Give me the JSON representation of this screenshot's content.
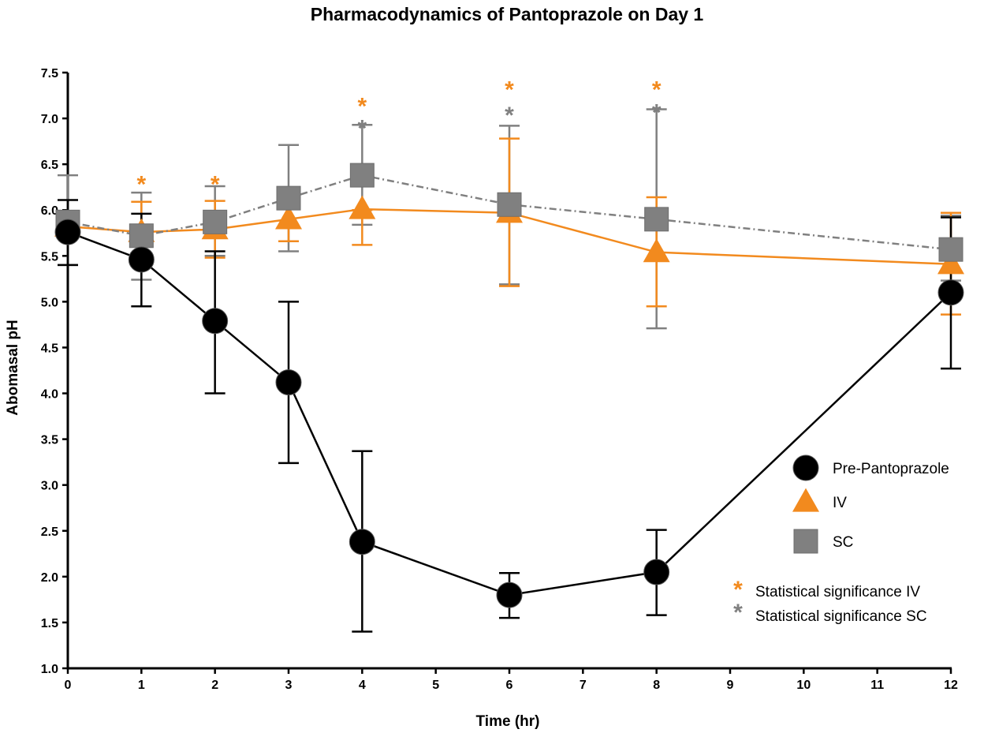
{
  "chart_data": {
    "type": "line",
    "title": "Pharmacodynamics of Pantoprazole on Day 1",
    "xlabel": "Time (hr)",
    "ylabel": "Abomasal pH",
    "xlim": [
      0,
      12
    ],
    "ylim": [
      1.0,
      7.5
    ],
    "x_ticks": [
      "0",
      "1",
      "2",
      "3",
      "4",
      "5",
      "6",
      "7",
      "8",
      "9",
      "10",
      "11",
      "12"
    ],
    "y_ticks": [
      "1.0",
      "1.5",
      "2.0",
      "2.5",
      "3.0",
      "3.5",
      "4.0",
      "4.5",
      "5.0",
      "5.5",
      "6.0",
      "6.5",
      "7.0",
      "7.5"
    ],
    "grid": false,
    "legend_position": "right",
    "series": [
      {
        "name": "Pre-Pantoprazole",
        "marker": "circle",
        "color": "#000000",
        "line": "solid",
        "x": [
          0,
          1,
          2,
          3,
          4,
          6,
          8,
          12
        ],
        "values": [
          5.76,
          5.46,
          4.79,
          4.12,
          2.38,
          1.8,
          2.05,
          5.1
        ],
        "err_low": [
          5.4,
          4.95,
          4.0,
          3.24,
          1.4,
          1.55,
          1.58,
          4.27
        ],
        "err_high": [
          6.11,
          5.96,
          5.55,
          5.0,
          3.37,
          2.04,
          2.51,
          5.92
        ]
      },
      {
        "name": "IV",
        "marker": "triangle",
        "color": "#F28A1E",
        "line": "solid",
        "x": [
          0,
          1,
          2,
          3,
          4,
          6,
          8,
          12
        ],
        "values": [
          5.82,
          5.76,
          5.79,
          5.9,
          6.01,
          5.97,
          5.54,
          5.41
        ],
        "err_low": [
          5.7,
          5.45,
          5.48,
          5.66,
          5.62,
          5.17,
          4.95,
          4.86
        ],
        "err_high": [
          5.95,
          6.09,
          6.1,
          6.15,
          6.0,
          6.78,
          6.14,
          5.97
        ]
      },
      {
        "name": "SC",
        "marker": "square",
        "color": "#808080",
        "line": "dashdot",
        "x": [
          0,
          1,
          2,
          3,
          4,
          6,
          8,
          12
        ],
        "values": [
          5.87,
          5.72,
          5.87,
          6.13,
          6.38,
          6.06,
          5.9,
          5.57
        ],
        "err_low": [
          5.4,
          5.24,
          5.5,
          5.55,
          5.84,
          5.19,
          4.71,
          5.23
        ],
        "err_high": [
          6.38,
          6.19,
          6.26,
          6.71,
          6.93,
          6.92,
          7.1,
          5.94
        ]
      }
    ],
    "annotations": [
      {
        "series": "IV",
        "x": 1,
        "y": 6.37,
        "text": "*"
      },
      {
        "series": "IV",
        "x": 2,
        "y": 6.37,
        "text": "*"
      },
      {
        "series": "IV",
        "x": 4,
        "y": 7.22,
        "text": "*"
      },
      {
        "series": "SC",
        "x": 4,
        "y": 6.98,
        "text": "*"
      },
      {
        "series": "IV",
        "x": 6,
        "y": 7.4,
        "text": "*"
      },
      {
        "series": "SC",
        "x": 6,
        "y": 7.12,
        "text": "*"
      },
      {
        "series": "IV",
        "x": 8,
        "y": 7.4,
        "text": "*"
      },
      {
        "series": "SC",
        "x": 8,
        "y": 7.15,
        "text": "*"
      }
    ],
    "legend": [
      {
        "label": "Pre-Pantoprazole",
        "marker": "circle",
        "color": "#000000"
      },
      {
        "label": "IV",
        "marker": "triangle",
        "color": "#F28A1E"
      },
      {
        "label": "SC",
        "marker": "square",
        "color": "#808080"
      }
    ],
    "significance_legend": [
      {
        "symbol": "*",
        "label": "Statistical significance IV",
        "color": "#F28A1E"
      },
      {
        "symbol": "*",
        "label": "Statistical significance SC",
        "color": "#808080"
      }
    ]
  }
}
